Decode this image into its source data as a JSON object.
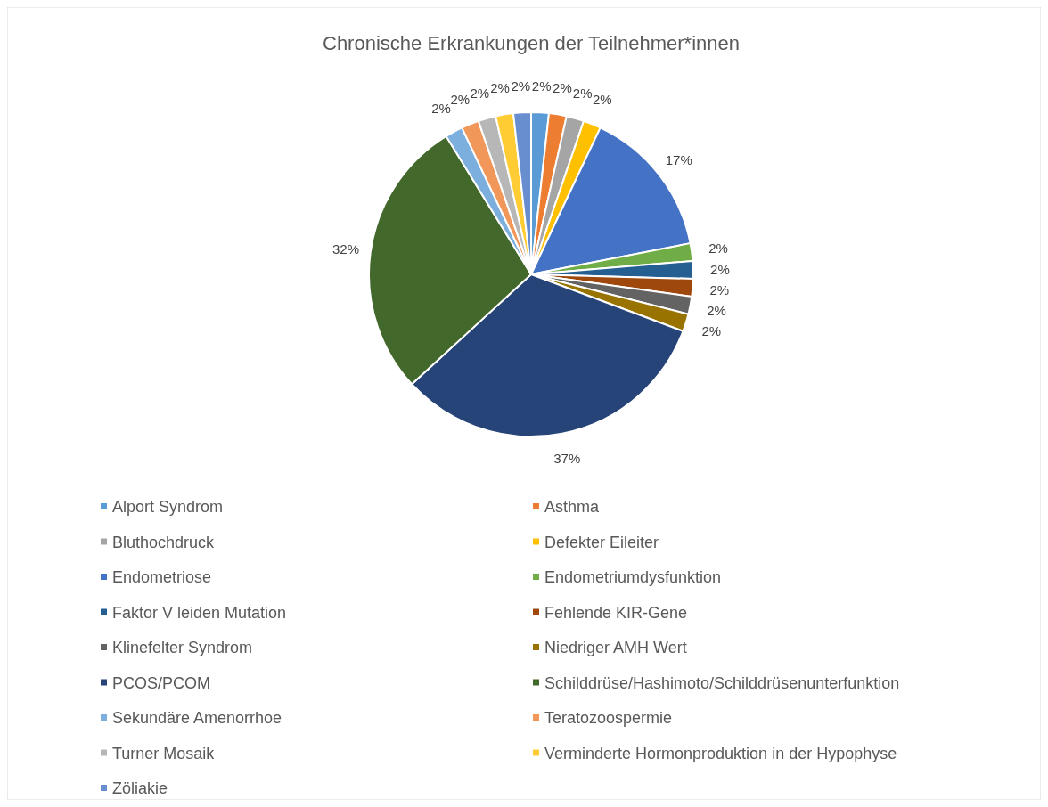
{
  "chart_data": {
    "type": "pie",
    "title": "Chronische Erkrankungen der Teilnehmer*innen",
    "categories": [
      "Alport Syndrom",
      "Asthma",
      "Bluthochdruck",
      "Defekter Eileiter",
      "Endometriose",
      "Endometriumdysfunktion",
      "Faktor V leiden Mutation",
      "Fehlende KIR-Gene",
      "Klinefelter Syndrom",
      "Niedriger AMH Wert",
      "PCOS/PCOM",
      "Schilddrüse/Hashimoto/Schilddrüsenunterfunktion",
      "Sekundäre Amenorrhoe",
      "Teratozoospermie",
      "Turner Mosaik",
      "Verminderte Hormonproduktion in der Hypophyse",
      "Zöliakie"
    ],
    "values": [
      2,
      2,
      2,
      2,
      17,
      2,
      2,
      2,
      2,
      2,
      37,
      32,
      2,
      2,
      2,
      2,
      2
    ],
    "value_labels": [
      "2%",
      "2%",
      "2%",
      "2%",
      "17%",
      "2%",
      "2%",
      "2%",
      "2%",
      "2%",
      "37%",
      "32%",
      "2%",
      "2%",
      "2%",
      "2%",
      "2%"
    ],
    "colors": [
      "#5b9bd5",
      "#ed7d31",
      "#a5a5a5",
      "#ffc000",
      "#4472c4",
      "#70ad47",
      "#255e91",
      "#9e480e",
      "#636363",
      "#997300",
      "#264478",
      "#43682b",
      "#7cafdd",
      "#f1975a",
      "#b7b7b7",
      "#ffcd33",
      "#698ed0"
    ],
    "legend": "bottom"
  }
}
